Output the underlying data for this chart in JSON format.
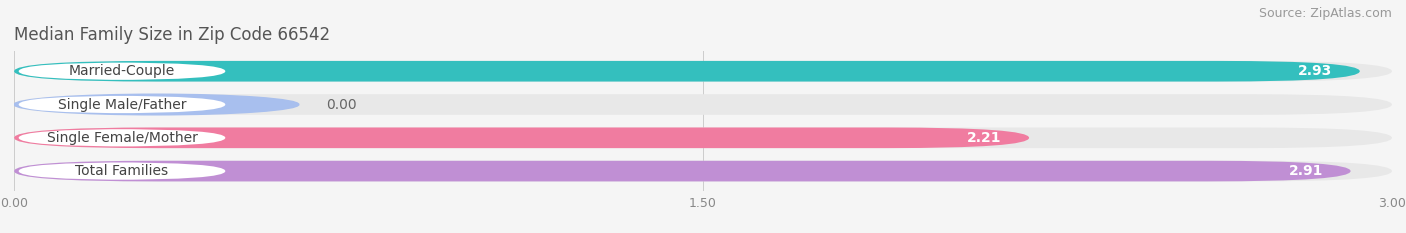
{
  "title": "Median Family Size in Zip Code 66542",
  "source": "Source: ZipAtlas.com",
  "categories": [
    "Married-Couple",
    "Single Male/Father",
    "Single Female/Mother",
    "Total Families"
  ],
  "values": [
    2.93,
    0.0,
    2.21,
    2.91
  ],
  "bar_colors": [
    "#34bfbe",
    "#a8bfee",
    "#f07ca0",
    "#c08fd4"
  ],
  "track_color": "#e8e8e8",
  "label_bg_color": "#ffffff",
  "xlim": [
    0,
    3.0
  ],
  "xticks": [
    0.0,
    1.5,
    3.0
  ],
  "xtick_labels": [
    "0.00",
    "1.50",
    "3.00"
  ],
  "background_color": "#f5f5f5",
  "title_fontsize": 12,
  "source_fontsize": 9,
  "label_fontsize": 10,
  "value_fontsize": 10,
  "bar_height": 0.62
}
